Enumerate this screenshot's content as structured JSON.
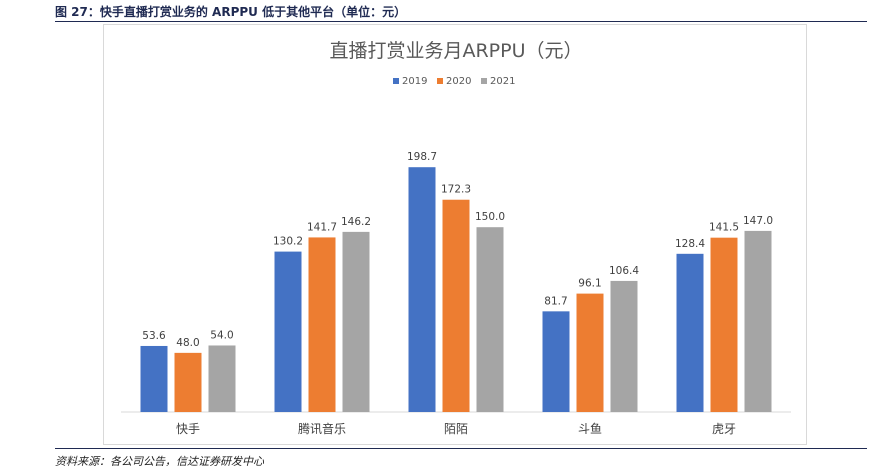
{
  "figure": {
    "title": "图 27：快手直播打赏业务的 ARPPU 低于其他平台（单位：元）",
    "source": "资料来源：各公司公告，信达证券研发中心"
  },
  "chart_data": {
    "type": "bar",
    "title": "直播打赏业务月ARPPU（元）",
    "xlabel": "",
    "ylabel": "",
    "ylim": [
      0,
      200
    ],
    "grid": false,
    "legend_position": "top-center",
    "categories": [
      "快手",
      "腾讯音乐",
      "陌陌",
      "斗鱼",
      "虎牙"
    ],
    "series": [
      {
        "name": "2019",
        "color": "#4472c4",
        "values": [
          53.6,
          130.2,
          198.7,
          81.7,
          128.4
        ]
      },
      {
        "name": "2020",
        "color": "#ed7d31",
        "values": [
          48.0,
          141.7,
          172.3,
          96.1,
          141.5
        ]
      },
      {
        "name": "2021",
        "color": "#a5a5a5",
        "values": [
          54.0,
          146.2,
          150.0,
          106.4,
          147.0
        ]
      }
    ]
  }
}
